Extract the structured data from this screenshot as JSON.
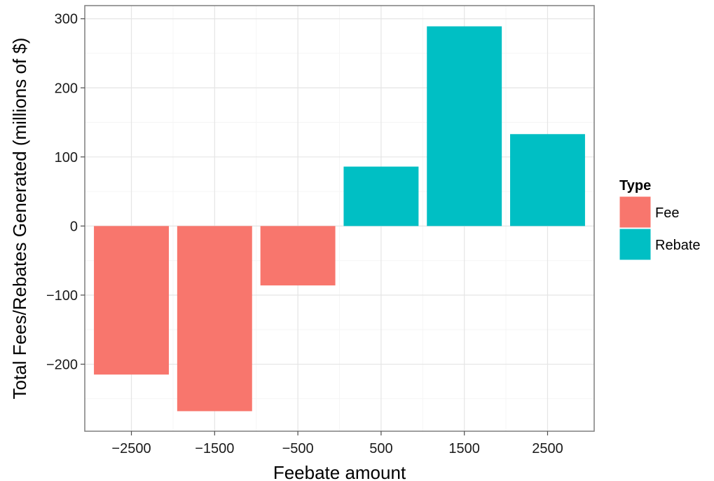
{
  "chart_data": {
    "type": "bar",
    "xlabel": "Feebate amount",
    "ylabel": "Total Fees/Rebates Generated (millions of $)",
    "categories": [
      -2500,
      -1500,
      -500,
      500,
      1500,
      2500
    ],
    "category_labels": [
      "−2500",
      "−1500",
      "−500",
      "500",
      "1500",
      "2500"
    ],
    "values": [
      -215,
      -268,
      -86,
      86,
      289,
      133
    ],
    "fill_type": [
      "Fee",
      "Fee",
      "Fee",
      "Rebate",
      "Rebate",
      "Rebate"
    ],
    "xlim": [
      -3060,
      3060
    ],
    "ylim": [
      -297,
      319
    ],
    "yticks": [
      -200,
      -100,
      0,
      100,
      200,
      300
    ],
    "ytick_labels": [
      "−200",
      "−100",
      "0",
      "100",
      "200",
      "300"
    ],
    "grid": true,
    "legend": {
      "title": "Type",
      "position": "right",
      "entries": [
        {
          "label": "Fee",
          "color": "#F8766D"
        },
        {
          "label": "Rebate",
          "color": "#00BFC4"
        }
      ]
    },
    "colors": {
      "Fee": "#F8766D",
      "Rebate": "#00BFC4"
    }
  }
}
